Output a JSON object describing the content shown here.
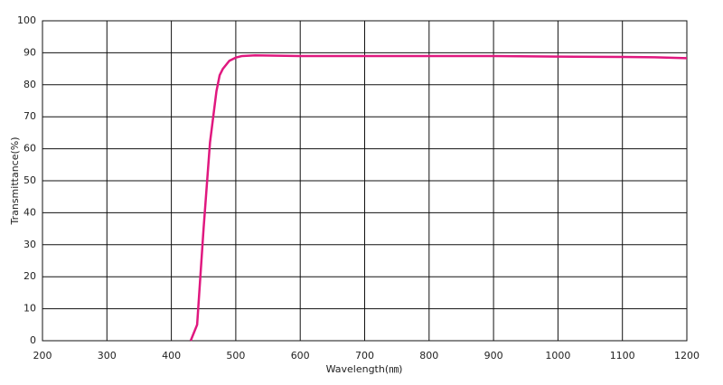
{
  "chart_data": {
    "type": "line",
    "x_label": "Wavelength(㎚)",
    "y_label": "Transmittance(%)",
    "xlim": [
      200,
      1200
    ],
    "ylim": [
      0,
      100
    ],
    "xticks": [
      200,
      300,
      400,
      500,
      600,
      700,
      800,
      900,
      1000,
      1100,
      1200
    ],
    "yticks": [
      0,
      10,
      20,
      30,
      40,
      50,
      60,
      70,
      80,
      90,
      100
    ],
    "grid": true,
    "series": [
      {
        "color": "#e0187f",
        "x": [
          430,
          440,
          450,
          460,
          470,
          475,
          480,
          490,
          500,
          510,
          530,
          600,
          800,
          900,
          1000,
          1100,
          1150,
          1200
        ],
        "values": [
          0,
          5,
          35,
          62,
          78,
          83,
          85,
          87.5,
          88.5,
          89,
          89.2,
          89,
          89,
          89,
          88.8,
          88.7,
          88.6,
          88.3
        ]
      }
    ]
  }
}
